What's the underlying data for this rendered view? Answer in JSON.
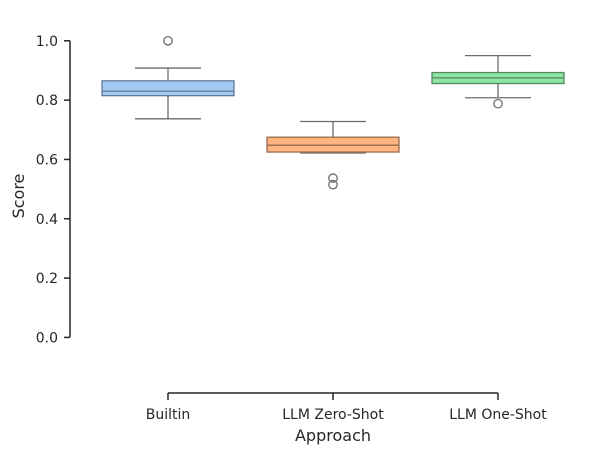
{
  "chart_data": {
    "type": "box",
    "xlabel": "Approach",
    "ylabel": "Score",
    "ylim": [
      -0.12,
      1.06
    ],
    "yticks": [
      0.0,
      0.2,
      0.4,
      0.6,
      0.8,
      1.0
    ],
    "ytick_labels": [
      "0.0",
      "0.2",
      "0.4",
      "0.6",
      "0.8",
      "1.0"
    ],
    "grid": false,
    "categories": [
      "Builtin",
      "LLM Zero-Shot",
      "LLM One-Shot"
    ],
    "boxes": [
      {
        "category": "Builtin",
        "color": "#a1c9f4",
        "whisker_low": 0.737,
        "q1": 0.815,
        "median": 0.83,
        "q3": 0.865,
        "whisker_high": 0.908,
        "outliers": [
          1.0
        ]
      },
      {
        "category": "LLM Zero-Shot",
        "color": "#ffb482",
        "whisker_low": 0.622,
        "q1": 0.625,
        "median": 0.648,
        "q3": 0.675,
        "whisker_high": 0.728,
        "outliers": [
          0.537,
          0.515
        ]
      },
      {
        "category": "LLM One-Shot",
        "color": "#8de5a1",
        "whisker_low": 0.808,
        "q1": 0.856,
        "median": 0.875,
        "q3": 0.893,
        "whisker_high": 0.95,
        "outliers": [
          0.788
        ]
      }
    ],
    "edge_color": "#6b6b6b",
    "axis_color": "#262626"
  }
}
